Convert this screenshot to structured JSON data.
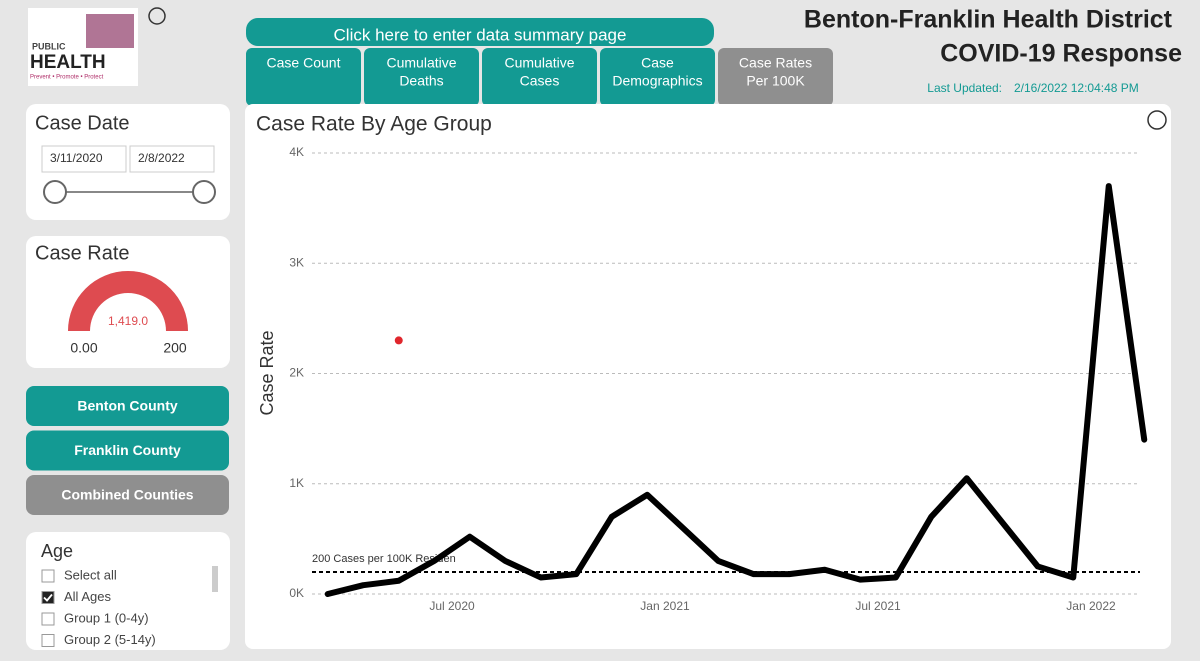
{
  "header": {
    "logo": {
      "top": "PUBLIC",
      "main": "HEALTH",
      "motto": "Prevent • Promote • Protect"
    },
    "title_lines": [
      "Benton-Franklin Health District",
      "COVID-19 Response"
    ],
    "updated_label": "Last Updated:",
    "updated_value": "2/16/2022 12:04:48 PM",
    "summary_button": "Click here to enter data summary page"
  },
  "tabs": [
    {
      "lines": [
        "Case Count"
      ]
    },
    {
      "lines": [
        "Cumulative",
        "Deaths"
      ]
    },
    {
      "lines": [
        "Cumulative",
        "Cases"
      ]
    },
    {
      "lines": [
        "Case",
        "Demographics"
      ]
    },
    {
      "lines": [
        "Case Rates",
        "Per 100K"
      ]
    }
  ],
  "sidebar": {
    "date_filter": {
      "title": "Case Date",
      "start": "3/11/2020",
      "end": "2/8/2022"
    },
    "gauge": {
      "title": "Case Rate",
      "value": 1419.0,
      "value_label": "1,419.0",
      "min": 0,
      "min_label": "0.00",
      "max": 200,
      "color": "#de4b50"
    },
    "buttons": [
      {
        "label": "Benton County"
      },
      {
        "label": "Franklin County"
      },
      {
        "label": "Combined Counties"
      }
    ],
    "age": {
      "title": "Age",
      "items": [
        {
          "label": "Select all",
          "checked": false
        },
        {
          "label": "All Ages",
          "checked": true
        },
        {
          "label": "Group 1 (0-4y)",
          "checked": false
        },
        {
          "label": "Group 2 (5-14y)",
          "checked": false
        }
      ]
    }
  },
  "chart_data": {
    "type": "line",
    "title": "Case Rate By Age Group",
    "y_label": "Case Rate",
    "x": [
      "2020-03",
      "2020-04",
      "2020-05",
      "2020-06",
      "2020-07",
      "2020-08",
      "2020-09",
      "2020-10",
      "2020-11",
      "2020-12",
      "2021-01",
      "2021-02",
      "2021-03",
      "2021-04",
      "2021-05",
      "2021-06",
      "2021-07",
      "2021-08",
      "2021-09",
      "2021-10",
      "2021-11",
      "2021-12",
      "2022-01",
      "2022-02"
    ],
    "series": [
      {
        "name": "Case Rate",
        "color": "#000000",
        "values": [
          0,
          80,
          120,
          300,
          520,
          300,
          150,
          180,
          700,
          900,
          600,
          300,
          180,
          180,
          220,
          130,
          150,
          700,
          1050,
          650,
          250,
          150,
          3700,
          1400
        ]
      }
    ],
    "xlim": [
      "2020-03",
      "2022-02"
    ],
    "xticks": [
      {
        "value": "2020-07",
        "label": "Jul 2020"
      },
      {
        "value": "2021-01",
        "label": "Jan 2021"
      },
      {
        "value": "2021-07",
        "label": "Jul 2021"
      },
      {
        "value": "2022-01",
        "label": "Jan 2022"
      }
    ],
    "ylim": [
      0,
      4000
    ],
    "yticks": [
      {
        "value": 0,
        "label": "0K"
      },
      {
        "value": 1000,
        "label": "1K"
      },
      {
        "value": 2000,
        "label": "2K"
      },
      {
        "value": 3000,
        "label": "3K"
      },
      {
        "value": 4000,
        "label": "4K"
      }
    ],
    "grid": true,
    "reference_line": {
      "value": 200,
      "label": "200 Cases per 100K Residen"
    },
    "marker": {
      "x": "2020-05",
      "value": 2300,
      "color": "#e0262c"
    }
  }
}
